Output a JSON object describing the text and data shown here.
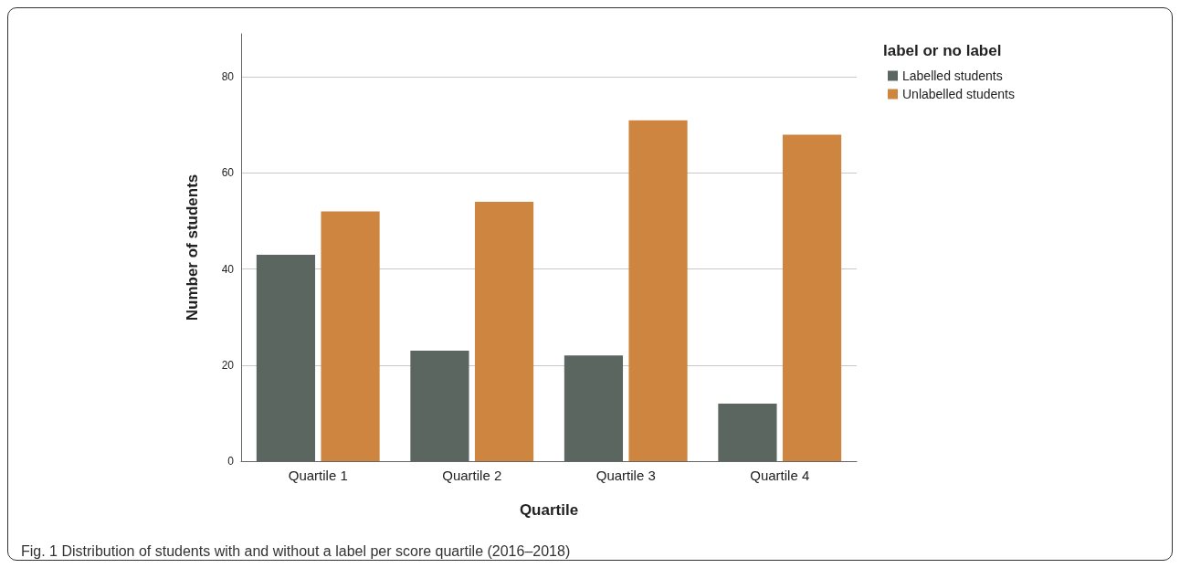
{
  "chart_data": {
    "type": "bar",
    "xlabel": "Quartile",
    "ylabel": "Number of students",
    "legend_title": "label or no label",
    "categories": [
      "Quartile 1",
      "Quartile 2",
      "Quartile 3",
      "Quartile 4"
    ],
    "series": [
      {
        "name": "Labelled students",
        "color": "#5b6660",
        "values": [
          43,
          23,
          22,
          12
        ]
      },
      {
        "name": "Unlabelled students",
        "color": "#cd853f",
        "values": [
          52,
          54,
          71,
          68
        ]
      }
    ],
    "ylim": [
      0,
      89
    ],
    "yticks": [
      0,
      20,
      40,
      60,
      80
    ],
    "grid": "y",
    "legend": "top right",
    "annotations": [
      "Fig. 1 Distribution of students with and without a label per score quartile (2016–2018)"
    ]
  }
}
